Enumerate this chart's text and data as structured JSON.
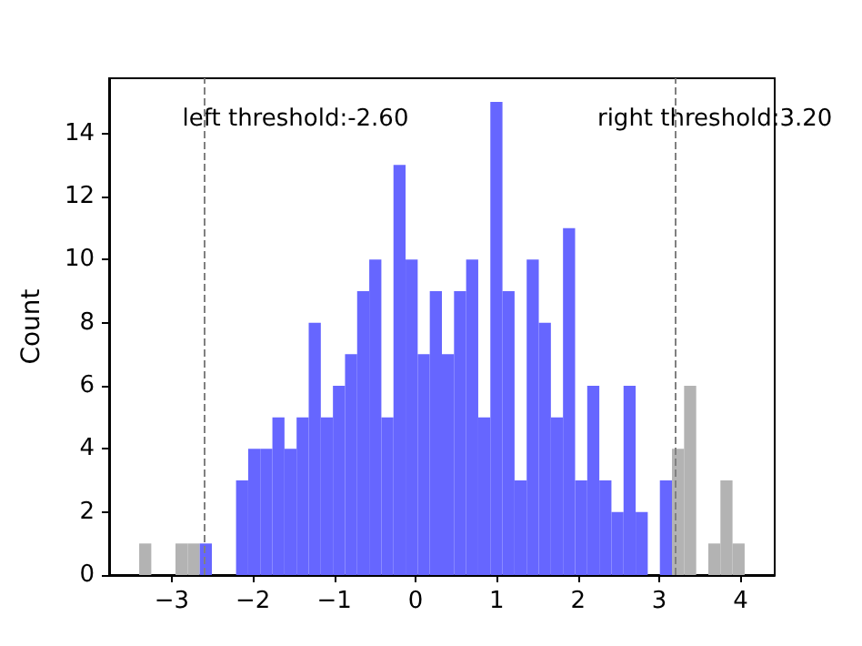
{
  "chart_data": {
    "type": "histogram",
    "ylabel": "Count",
    "bins": [
      -3.4,
      -3.251,
      -3.102,
      -2.953,
      -2.804,
      -2.655,
      -2.506,
      -2.357,
      -2.208,
      -2.059,
      -1.91,
      -1.761,
      -1.612,
      -1.463,
      -1.314,
      -1.165,
      -1.016,
      -0.867,
      -0.718,
      -0.569,
      -0.42,
      -0.271,
      -0.122,
      0.027,
      0.176,
      0.325,
      0.474,
      0.623,
      0.772,
      0.921,
      1.07,
      1.219,
      1.368,
      1.517,
      1.666,
      1.815,
      1.964,
      2.113,
      2.262,
      2.411,
      2.56,
      2.709,
      2.858,
      3.007,
      3.156,
      3.305,
      3.454,
      3.603,
      3.752,
      3.901,
      4.05
    ],
    "values": [
      1,
      0,
      0,
      1,
      1,
      1,
      0,
      0,
      3,
      4,
      4,
      5,
      4,
      5,
      8,
      5,
      6,
      7,
      9,
      10,
      5,
      13,
      10,
      7,
      9,
      7,
      9,
      10,
      5,
      15,
      9,
      3,
      10,
      8,
      5,
      11,
      3,
      6,
      3,
      2,
      6,
      2,
      0,
      3,
      4,
      6,
      0,
      1,
      3,
      1
    ],
    "colors": [
      "#b3b3b3",
      "#b3b3b3",
      "#b3b3b3",
      "#b3b3b3",
      "#b3b3b3",
      "#6666ff",
      "#6666ff",
      "#6666ff",
      "#6666ff",
      "#6666ff",
      "#6666ff",
      "#6666ff",
      "#6666ff",
      "#6666ff",
      "#6666ff",
      "#6666ff",
      "#6666ff",
      "#6666ff",
      "#6666ff",
      "#6666ff",
      "#6666ff",
      "#6666ff",
      "#6666ff",
      "#6666ff",
      "#6666ff",
      "#6666ff",
      "#6666ff",
      "#6666ff",
      "#6666ff",
      "#6666ff",
      "#6666ff",
      "#6666ff",
      "#6666ff",
      "#6666ff",
      "#6666ff",
      "#6666ff",
      "#6666ff",
      "#6666ff",
      "#6666ff",
      "#6666ff",
      "#6666ff",
      "#6666ff",
      "#6666ff",
      "#6666ff",
      "#b3b3b3",
      "#b3b3b3",
      "#b3b3b3",
      "#b3b3b3",
      "#b3b3b3",
      "#b3b3b3"
    ],
    "xlim": [
      -3.77,
      4.42
    ],
    "xticks": [
      {
        "value": -3,
        "label": "−3"
      },
      {
        "value": -2,
        "label": "−2"
      },
      {
        "value": -1,
        "label": "−1"
      },
      0,
      1,
      2,
      3,
      4
    ],
    "ylim": [
      0,
      15.75
    ],
    "yticks": [
      0,
      2,
      4,
      6,
      8,
      10,
      12,
      14
    ],
    "ref_lines": [
      {
        "axis": "x",
        "value": -2.6,
        "label": "left threshold:-2.60",
        "color": "#808080",
        "line_style": "dashed"
      },
      {
        "axis": "x",
        "value": 3.2,
        "label": "right threshold:3.20",
        "color": "#808080",
        "line_style": "dashed"
      }
    ],
    "grid": false
  }
}
